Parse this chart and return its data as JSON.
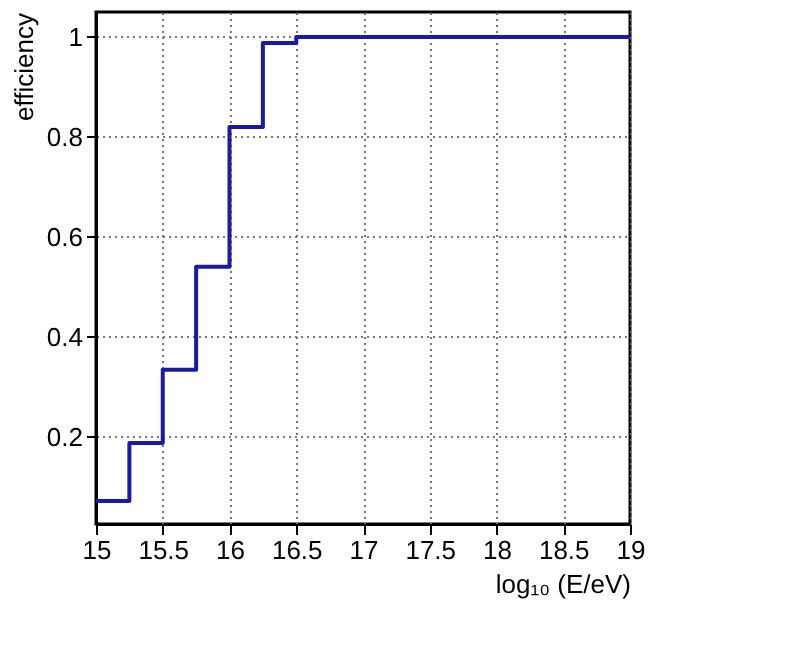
{
  "chart_data": {
    "type": "histogram",
    "xlabel": "log₁₀ (E/eV)",
    "ylabel": "efficiency",
    "bins": [
      15,
      15.25,
      15.5,
      15.75,
      16,
      16.25,
      16.5,
      16.75,
      17,
      17.25,
      17.5,
      17.75,
      18,
      18.25,
      18.5,
      18.75,
      19
    ],
    "values": [
      0.071,
      0.187,
      0.334,
      0.54,
      0.82,
      0.988,
      1,
      1,
      1,
      1,
      1,
      1,
      1,
      1,
      1,
      1
    ],
    "color": "#1a1aa6",
    "xlim": [
      15,
      19
    ],
    "xticks": [
      15,
      15.5,
      16,
      16.5,
      17,
      17.5,
      18,
      18.5,
      19
    ],
    "ylim": [
      0.025,
      1.05
    ],
    "yticks": [
      0.2,
      0.4,
      0.6,
      0.8,
      1
    ],
    "grid": true,
    "line_style": "solid"
  }
}
